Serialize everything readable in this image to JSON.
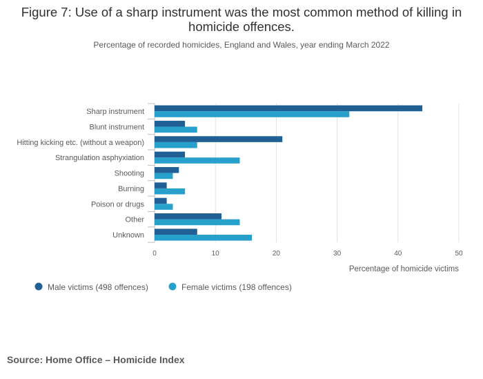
{
  "title": "Figure 7: Use of a sharp instrument was the most common method of killing in homicide offences.",
  "subtitle": "Percentage of recorded homicides, England and Wales, year ending March 2022",
  "source": "Source: Home Office – Homicide Index",
  "colors": {
    "male": "#206095",
    "female": "#27a0cc",
    "grid": "#e0e0e0",
    "axis": "#bdbdbd",
    "text": "#595959"
  },
  "chart_data": {
    "type": "bar",
    "orientation": "horizontal",
    "categories": [
      "Sharp instrument",
      "Blunt instrument",
      "Hitting kicking etc. (without a weapon)",
      "Strangulation asphyxiation",
      "Shooting",
      "Burning",
      "Poison or drugs",
      "Other",
      "Unknown"
    ],
    "series": [
      {
        "name": "Male victims (498 offences)",
        "values": [
          44,
          5,
          21,
          5,
          4,
          2,
          2,
          11,
          7
        ]
      },
      {
        "name": "Female victims (198 offences)",
        "values": [
          32,
          7,
          7,
          14,
          3,
          5,
          3,
          14,
          16
        ]
      }
    ],
    "xlabel": "Percentage of homicide victims",
    "ylabel": "",
    "xlim": [
      0,
      50
    ],
    "xticks": [
      0,
      10,
      20,
      30,
      40,
      50
    ],
    "grid": true,
    "legend_position": "bottom-left"
  }
}
